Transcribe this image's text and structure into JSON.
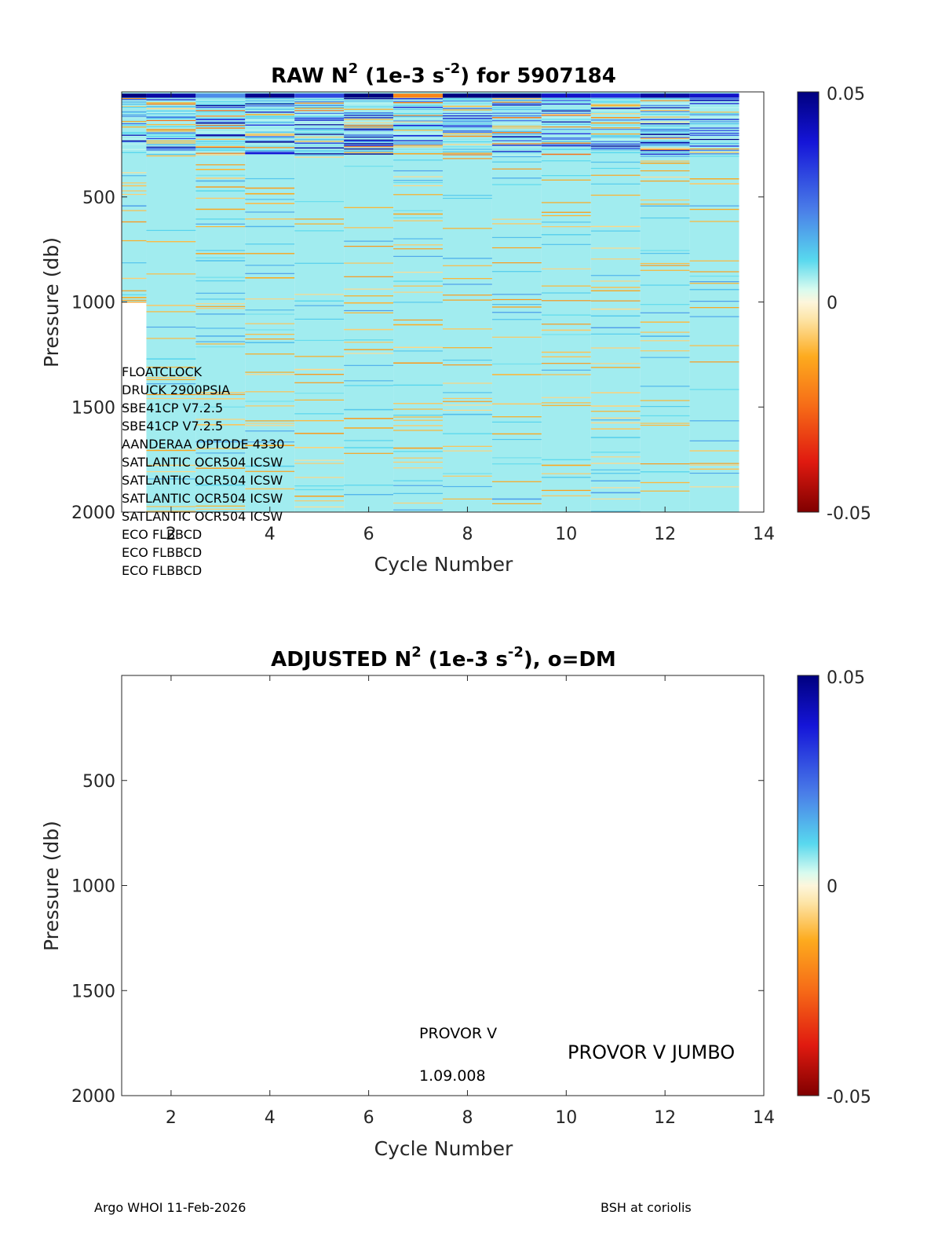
{
  "chart_data": [
    {
      "type": "heatmap",
      "name": "raw",
      "title_prefix": "RAW N",
      "title_exp": "2",
      "title_units_a": " (1e-3 s",
      "title_units_exp": "-2",
      "title_suffix": ") for 5907184",
      "xlabel": "Cycle Number",
      "ylabel": "Pressure (db)",
      "xlim": [
        1,
        14
      ],
      "ylim": [
        0,
        2000
      ],
      "y_reversed": true,
      "xticks": [
        2,
        4,
        6,
        8,
        10,
        12,
        14
      ],
      "yticks": [
        500,
        1000,
        1500,
        2000
      ],
      "clim": [
        -0.05,
        0.05
      ],
      "colorbar_ticks": [
        "0.05",
        "0",
        "-0.05"
      ],
      "cycles": [
        1,
        2,
        3,
        4,
        5,
        6,
        7,
        8,
        9,
        10,
        11,
        12,
        13
      ],
      "max_pressure": [
        1000,
        2000,
        2000,
        2000,
        2000,
        2000,
        2000,
        2000,
        2000,
        2000,
        2000,
        2000,
        2000
      ],
      "sensors": [
        "FLOATCLOCK",
        "DRUCK 2900PSIA",
        "SBE41CP V7.2.5",
        "SBE41CP V7.2.5",
        "AANDERAA OPTODE 4330",
        "SATLANTIC OCR504 ICSW",
        "SATLANTIC OCR504 ICSW",
        "SATLANTIC OCR504 ICSW",
        "SATLANTIC OCR504 ICSW",
        "ECO FLBBCD",
        "ECO FLBBCD",
        "ECO FLBBCD"
      ]
    },
    {
      "type": "heatmap",
      "name": "adjusted",
      "title_prefix": "ADJUSTED N",
      "title_exp": "2",
      "title_units_a": " (1e-3 s",
      "title_units_exp": "-2",
      "title_suffix": "), o=DM",
      "xlabel": "Cycle Number",
      "ylabel": "Pressure (db)",
      "xlim": [
        1,
        14
      ],
      "ylim": [
        0,
        2000
      ],
      "y_reversed": true,
      "xticks": [
        2,
        4,
        6,
        8,
        10,
        12,
        14
      ],
      "yticks": [
        500,
        1000,
        1500,
        2000
      ],
      "clim": [
        -0.05,
        0.05
      ],
      "colorbar_ticks": [
        "0.05",
        "0",
        "-0.05"
      ],
      "values": [],
      "annotations": {
        "platform": "PROVOR V",
        "firmware": "1.09.008",
        "model": "PROVOR V JUMBO"
      }
    }
  ],
  "footer": {
    "left": "Argo WHOI 11-Feb-2026",
    "right": "BSH at coriolis"
  }
}
